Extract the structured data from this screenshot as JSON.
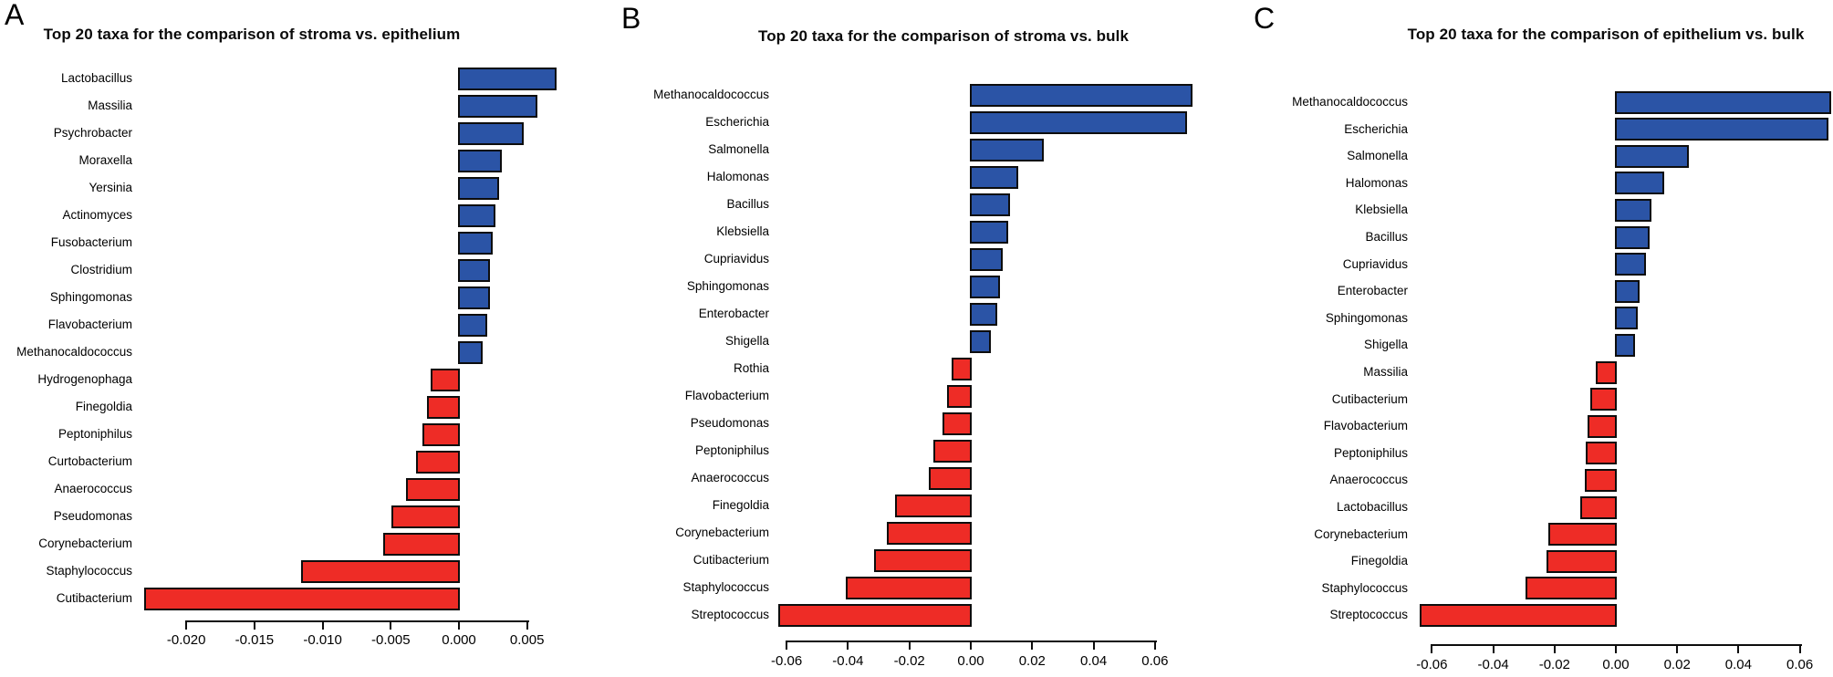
{
  "figure": {
    "background": "#ffffff",
    "bar_positive_color": "#2b54a6",
    "bar_negative_color": "#ee2c26",
    "bar_border_color": "#0d0d0d",
    "panels": [
      {
        "letter": "A"
      },
      {
        "letter": "B"
      },
      {
        "letter": "C"
      }
    ]
  },
  "chart_data": [
    {
      "type": "bar",
      "orientation": "horizontal",
      "title": "Top 20 taxa for the comparison of stroma vs. epithelium",
      "categories": [
        "Lactobacillus",
        "Massilia",
        "Psychrobacter",
        "Moraxella",
        "Yersinia",
        "Actinomyces",
        "Fusobacterium",
        "Clostridium",
        "Sphingomonas",
        "Flavobacterium",
        "Methanocaldococcus",
        "Hydrogenophaga",
        "Finegoldia",
        "Peptoniphilus",
        "Curtobacterium",
        "Anaerococcus",
        "Pseudomonas",
        "Corynebacterium",
        "Staphylococcus",
        "Cutibacterium"
      ],
      "values": [
        0.0071,
        0.0057,
        0.0047,
        0.0031,
        0.0029,
        0.0026,
        0.0024,
        0.0022,
        0.0022,
        0.002,
        0.0017,
        -0.002,
        -0.0023,
        -0.0026,
        -0.0031,
        -0.0038,
        -0.0049,
        -0.0055,
        -0.0115,
        -0.023
      ],
      "xticks": [
        -0.02,
        -0.015,
        -0.01,
        -0.005,
        0.0,
        0.005
      ],
      "xtick_labels": [
        "-0.020",
        "-0.015",
        "-0.010",
        "-0.005",
        "0.000",
        "0.005"
      ],
      "xlim": [
        -0.0235,
        0.0075
      ],
      "grid": false,
      "legend": null
    },
    {
      "type": "bar",
      "orientation": "horizontal",
      "title": "Top 20 taxa for the comparison of stroma vs. bulk",
      "categories": [
        "Methanocaldococcus",
        "Escherichia",
        "Salmonella",
        "Halomonas",
        "Bacillus",
        "Klebsiella",
        "Cupriavidus",
        "Sphingomonas",
        "Enterobacter",
        "Shigella",
        "Rothia",
        "Flavobacterium",
        "Pseudomonas",
        "Peptoniphilus",
        "Anaerococcus",
        "Finegoldia",
        "Corynebacterium",
        "Cutibacterium",
        "Staphylococcus",
        "Streptococcus"
      ],
      "values": [
        0.072,
        0.07,
        0.0235,
        0.0152,
        0.0125,
        0.012,
        0.0102,
        0.0092,
        0.0082,
        0.0062,
        -0.0059,
        -0.0074,
        -0.0089,
        -0.0119,
        -0.0134,
        -0.0244,
        -0.0271,
        -0.0312,
        -0.0404,
        -0.0624
      ],
      "xticks": [
        -0.06,
        -0.04,
        -0.02,
        0.0,
        0.02,
        0.04,
        0.06
      ],
      "xtick_labels": [
        "-0.06",
        "-0.04",
        "-0.02",
        "0.00",
        "0.02",
        "0.04",
        "0.06"
      ],
      "xlim": [
        -0.063,
        0.073
      ],
      "grid": false,
      "legend": null
    },
    {
      "type": "bar",
      "orientation": "horizontal",
      "title": "Top 20 taxa for the comparison of epithelium vs. bulk",
      "categories": [
        "Methanocaldococcus",
        "Escherichia",
        "Salmonella",
        "Halomonas",
        "Klebsiella",
        "Bacillus",
        "Cupriavidus",
        "Enterobacter",
        "Sphingomonas",
        "Shigella",
        "Massilia",
        "Cutibacterium",
        "Flavobacterium",
        "Peptoniphilus",
        "Anaerococcus",
        "Lactobacillus",
        "Corynebacterium",
        "Finegoldia",
        "Staphylococcus",
        "Streptococcus"
      ],
      "values": [
        0.07,
        0.069,
        0.0235,
        0.0155,
        0.0113,
        0.0107,
        0.0095,
        0.0074,
        0.0068,
        0.006,
        -0.0063,
        -0.008,
        -0.0089,
        -0.0095,
        -0.0098,
        -0.0113,
        -0.0217,
        -0.0223,
        -0.0292,
        -0.0637
      ],
      "xticks": [
        -0.06,
        -0.04,
        -0.02,
        0.0,
        0.02,
        0.04,
        0.06
      ],
      "xtick_labels": [
        "-0.06",
        "-0.04",
        "-0.02",
        "0.00",
        "0.02",
        "0.04",
        "0.06"
      ],
      "xlim": [
        -0.064,
        0.071
      ],
      "grid": false,
      "legend": null
    }
  ]
}
